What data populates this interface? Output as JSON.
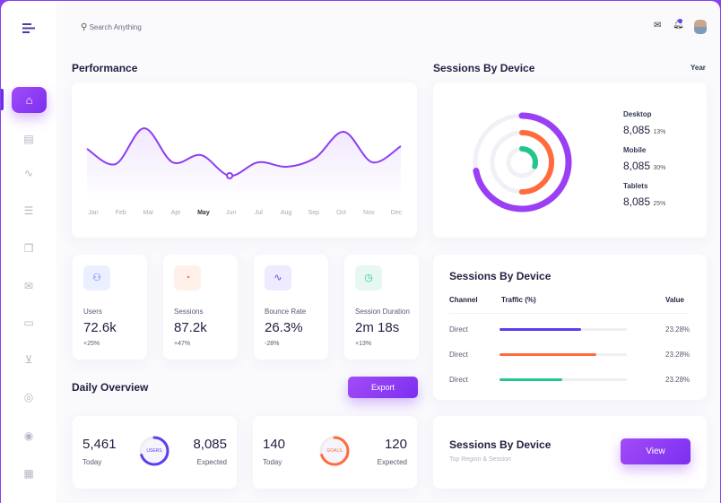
{
  "search": {
    "placeholder": "Search Anything"
  },
  "icons": {
    "menu": "menu-icon",
    "mail": "mail-icon",
    "bell": "bell-icon"
  },
  "sidebar": {
    "items": [
      "home",
      "layout",
      "activity",
      "database",
      "copy",
      "mail",
      "chat",
      "cart",
      "share",
      "target",
      "calendar"
    ],
    "active": "home"
  },
  "performance": {
    "title": "Performance"
  },
  "chart_data": {
    "type": "line",
    "title": "Performance",
    "categories": [
      "Jan",
      "Feb",
      "Mar",
      "Apr",
      "May",
      "Jun",
      "Jul",
      "Aug",
      "Sep",
      "Oct",
      "Nov",
      "Dec"
    ],
    "values": [
      45,
      28,
      68,
      30,
      38,
      15,
      30,
      25,
      35,
      64,
      30,
      48
    ],
    "highlight": "May",
    "grid": false,
    "color": "#8c3ff0"
  },
  "device": {
    "title": "Sessions By Device",
    "period": "Year",
    "items": [
      {
        "label": "Desktop",
        "value": "8,085",
        "pct": "13%",
        "fraction": 0.72,
        "color": "#9b3ff5"
      },
      {
        "label": "Mobile",
        "value": "8,085",
        "pct": "30%",
        "fraction": 0.5,
        "color": "#ff6b3d"
      },
      {
        "label": "Tablets",
        "value": "8,085",
        "pct": "25%",
        "fraction": 0.3,
        "color": "#22c58b"
      }
    ]
  },
  "stats": [
    {
      "label": "Users",
      "value": "72.6k",
      "change": "+25%",
      "icon": "users-icon",
      "bg": "#eaf0ff",
      "fg": "#4e6cf0"
    },
    {
      "label": "Sessions",
      "value": "87.2k",
      "change": "+47%",
      "icon": "sessions-icon",
      "bg": "#fff0ea",
      "fg": "#ff6b3d"
    },
    {
      "label": "Bounce Rate",
      "value": "26.3%",
      "change": "-28%",
      "icon": "activity-icon",
      "bg": "#eeeaff",
      "fg": "#6a3ef0"
    },
    {
      "label": "Session Duration",
      "value": "2m 18s",
      "change": "+13%",
      "icon": "clock-icon",
      "bg": "#e6f8f1",
      "fg": "#22c58b"
    }
  ],
  "daily": {
    "title": "Daily Overview",
    "export": "Export",
    "cards": [
      {
        "today": "5,461",
        "today_label": "Today",
        "expected": "8,085",
        "expected_label": "Expected",
        "ring": "USERS",
        "color": "#5a3ef0",
        "fraction": 0.7
      },
      {
        "today": "140",
        "today_label": "Today",
        "expected": "120",
        "expected_label": "Expected",
        "ring": "GOALS",
        "color": "#ff6b3d",
        "fraction": 0.7
      }
    ]
  },
  "traffic": {
    "title": "Sessions By Device",
    "headers": [
      "Channel",
      "Traffic (%)",
      "Value"
    ],
    "rows": [
      {
        "channel": "Direct",
        "fill": 0.64,
        "value": "23.28%",
        "color": "#5a3ef0"
      },
      {
        "channel": "Direct",
        "fill": 0.76,
        "value": "23.28%",
        "color": "#ff6b3d"
      },
      {
        "channel": "Direct",
        "fill": 0.49,
        "value": "23.28%",
        "color": "#22c58b"
      }
    ]
  },
  "region": {
    "title": "Sessions By Device",
    "subtitle": "Top Region & Session",
    "button": "View"
  }
}
